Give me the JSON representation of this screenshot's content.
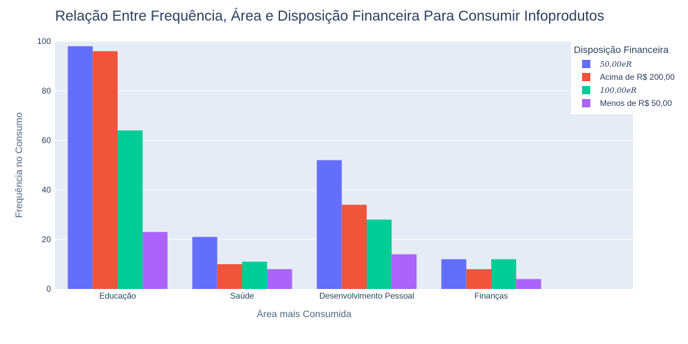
{
  "chart_data": {
    "type": "bar",
    "title": "Relação Entre Frequência, Área e Disposição Financeira Para Consumir Infoprodutos",
    "xlabel": "Área mais Consumida",
    "ylabel": "Frequência no Consumo",
    "categories": [
      "Educação",
      "Saúde",
      "Desenvolvimento Pessoal",
      "Finanças"
    ],
    "ylim": [
      0,
      100
    ],
    "yticks": [
      0,
      20,
      40,
      60,
      80,
      100
    ],
    "grid": true,
    "legend_title": "Disposição Financeira",
    "legend_position": "top-right",
    "series": [
      {
        "name": "50,00eR",
        "math": true,
        "color": "#636efa",
        "values": [
          98,
          21,
          52,
          12
        ]
      },
      {
        "name": "Acima de R$ 200,00",
        "math": false,
        "color": "#ef553b",
        "values": [
          96,
          10,
          34,
          8
        ]
      },
      {
        "name": "100,00eR",
        "math": true,
        "color": "#00cc96",
        "values": [
          64,
          11,
          28,
          12
        ]
      },
      {
        "name": "Menos de R$ 50,00",
        "math": false,
        "color": "#ab63fa",
        "values": [
          23,
          8,
          14,
          4
        ]
      }
    ]
  }
}
